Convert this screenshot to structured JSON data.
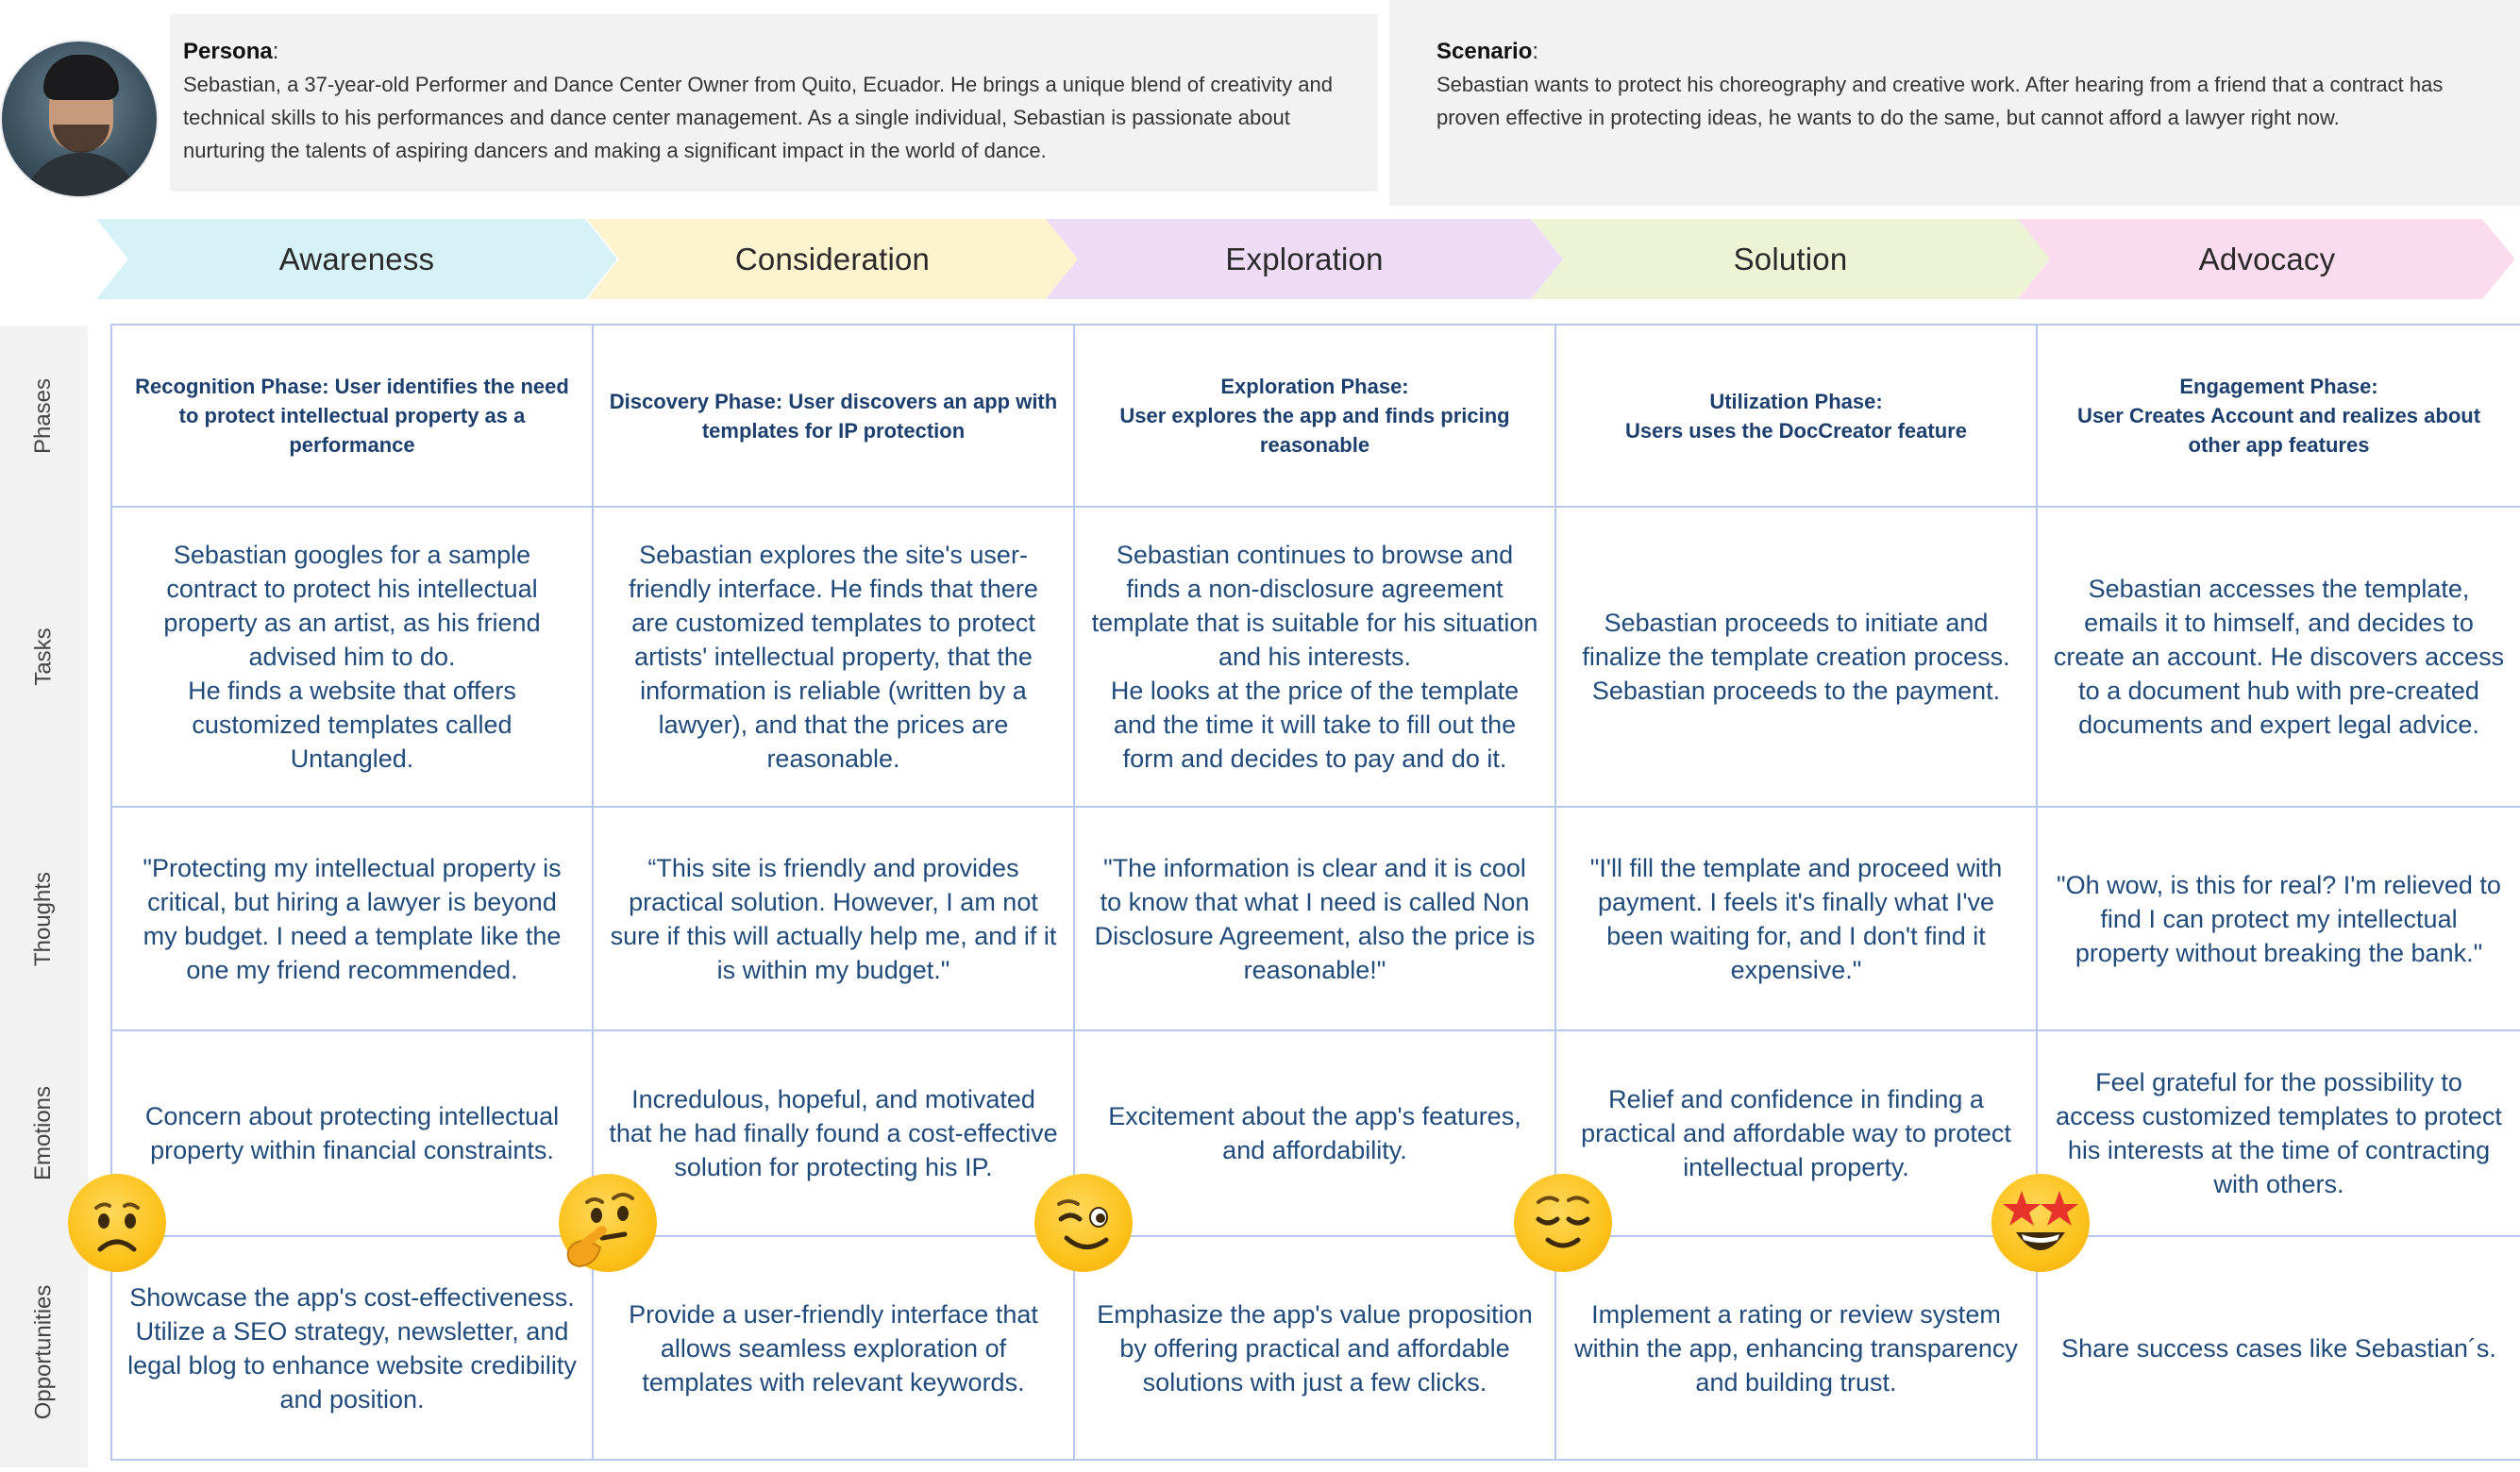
{
  "persona": {
    "title": "Persona",
    "text": "Sebastian, a 37-year-old Performer and Dance Center Owner from Quito, Ecuador. He brings a unique blend of creativity and technical skills to his performances and dance center management. As a single individual, Sebastian is passionate about nurturing the talents of aspiring dancers and making a significant impact in the world of dance."
  },
  "scenario": {
    "title": "Scenario",
    "text": "Sebastian wants to protect his choreography and creative work. After hearing from a friend that a contract has proven effective in protecting ideas, he wants to do the same, but cannot afford a lawyer right now."
  },
  "colors": {
    "awareness": "#d6f2f6",
    "consideration": "#fdf3cf",
    "exploration": "#eedcf6",
    "solution": "#edf4d6",
    "advocacy": "#fbdcef",
    "grid": "#b7c9ea",
    "cell_text": "#1f4a7a"
  },
  "stages": [
    "Awareness",
    "Consideration",
    "Exploration",
    "Solution",
    "Advocacy"
  ],
  "row_labels": [
    "Phases",
    "Tasks",
    "Thoughts",
    "Emotions",
    "Opportunities"
  ],
  "columns": [
    {
      "phase": "Recognition Phase: User identifies the need to protect intellectual property as a performance",
      "task": "Sebastian googles for a sample contract to protect his intellectual property as an artist, as his friend advised him to do.\nHe finds a website that offers customized templates called Untangled.",
      "thought": "\"Protecting my intellectual property is critical, but hiring a lawyer is beyond my budget. I need a template like the one my friend recommended.",
      "emotion": "Concern about protecting intellectual property within financial constraints.",
      "opportunity": "Showcase the app's cost-effectiveness. Utilize a SEO strategy, newsletter, and legal blog to enhance website credibility and position.",
      "emoji": "worried-face-icon"
    },
    {
      "phase": "Discovery Phase: User discovers an app with templates for IP protection",
      "task": "Sebastian explores the site's user-friendly interface. He finds that there are customized templates to protect artists' intellectual property, that the information is reliable (written by a lawyer), and that the prices are reasonable.",
      "thought": "“This site is friendly and provides practical solution. However, I am not sure if this will actually help me, and if it is within my budget.\"",
      "emotion": "Incredulous, hopeful, and motivated that he had finally found a cost-effective solution for protecting his IP.",
      "opportunity": "Provide a user-friendly interface that allows seamless exploration of templates with relevant keywords.",
      "emoji": "thinking-face-icon"
    },
    {
      "phase": "Exploration Phase:\nUser explores the app and finds pricing reasonable",
      "task": "Sebastian continues to browse and finds a non-disclosure agreement template that is suitable for his situation and his interests.\nHe looks at the price of the template and the time it will take to fill out the form and decides to pay and do it.",
      "thought": "\"The information is clear and it is cool to know that what I need is called Non Disclosure Agreement, also the price is reasonable!\"",
      "emotion": "Excitement about the app's features, and affordability.",
      "opportunity": "Emphasize the app's value proposition by offering practical and affordable solutions with just a few clicks.",
      "emoji": "winking-face-icon"
    },
    {
      "phase": "Utilization Phase:\nUsers uses the DocCreator feature",
      "task": "Sebastian proceeds to initiate and finalize the template creation process. Sebastian proceeds to the payment.",
      "thought": "\"I'll fill the template and proceed with payment. I feels it's finally what I've been waiting for, and I don't find it expensive.\"",
      "emotion": "Relief and confidence in finding a practical and affordable way to protect intellectual property.",
      "opportunity": "Implement a rating or review system within the app, enhancing transparency and building trust.",
      "emoji": "relieved-face-icon"
    },
    {
      "phase": "Engagement  Phase:\nUser Creates Account and realizes about other app features",
      "task": "Sebastian accesses the template, emails it to himself, and decides to create an account. He discovers access to a document hub with pre-created documents and expert legal advice.",
      "thought": "\"Oh wow, is this for real? I'm relieved to find I can protect my intellectual property without breaking the bank.\"",
      "emotion": "Feel grateful for the possibility to access customized templates to protect his interests at the time of contracting with others.",
      "opportunity": "Share success cases like Sebastian´s.",
      "emoji": "star-struck-face-icon"
    }
  ]
}
